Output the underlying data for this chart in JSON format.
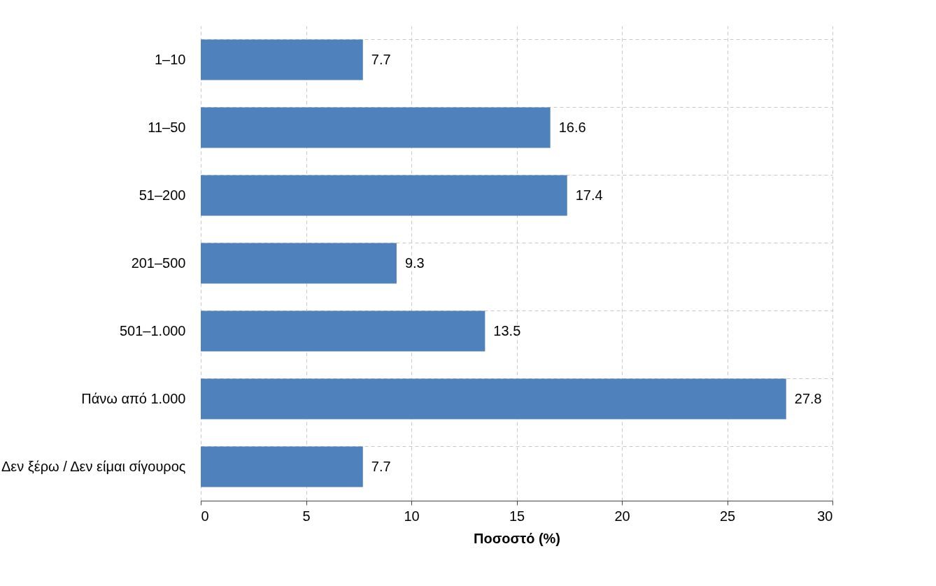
{
  "chart_data": {
    "type": "bar",
    "orientation": "horizontal",
    "xlabel": "Ποσοστό (%)",
    "categories": [
      "1–10",
      "11–50",
      "51–200",
      "201–500",
      "501–1.000",
      "Πάνω από 1.000",
      "Δεν ξέρω / Δεν είμαι σίγουρος"
    ],
    "values": [
      7.7,
      16.6,
      17.4,
      9.3,
      13.5,
      27.8,
      7.7
    ],
    "color": "#4f81bd",
    "xlim": [
      0,
      30
    ],
    "xticks": [
      0,
      5,
      10,
      15,
      20,
      25,
      30
    ],
    "grid": true,
    "data_labels": true
  }
}
